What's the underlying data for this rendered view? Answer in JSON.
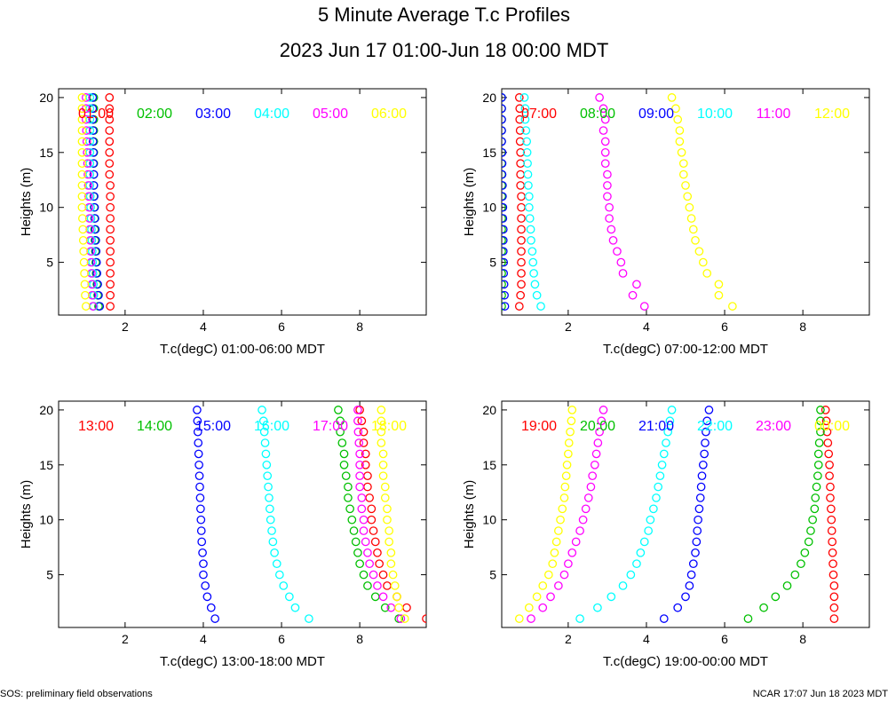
{
  "title": "5 Minute Average T.c Profiles",
  "subtitle": "2023 Jun 17 01:00-Jun 18 00:00 MDT",
  "footer_left": "SOS: preliminary field observations",
  "footer_right": "NCAR 17:07 Jun 18 2023 MDT",
  "colors": [
    "#ff0000",
    "#00c000",
    "#0000ff",
    "#00ffff",
    "#ff00ff",
    "#ffff00"
  ],
  "chart_data": [
    {
      "type": "scatter",
      "xlabel": "T.c(degC) 01:00-06:00 MDT",
      "ylabel": "Heights (m)",
      "xlim": [
        0.3,
        9.7
      ],
      "ylim": [
        0.2,
        20.8
      ],
      "xticks": [
        2,
        4,
        6,
        8
      ],
      "yticks": [
        5,
        10,
        15,
        20
      ],
      "heights": [
        1,
        2,
        3,
        4,
        5,
        6,
        7,
        8,
        9,
        10,
        11,
        12,
        13,
        14,
        15,
        16,
        17,
        18,
        19,
        20
      ],
      "series": [
        {
          "name": "01:00",
          "values": [
            1.62,
            1.62,
            1.62,
            1.62,
            1.62,
            1.62,
            1.62,
            1.62,
            1.62,
            1.62,
            1.62,
            1.62,
            1.6,
            1.6,
            1.6,
            1.6,
            1.6,
            1.6,
            1.6,
            1.6
          ]
        },
        {
          "name": "02:00",
          "values": [
            1.32,
            1.3,
            1.28,
            1.26,
            1.25,
            1.24,
            1.23,
            1.22,
            1.22,
            1.21,
            1.2,
            1.2,
            1.2,
            1.2,
            1.2,
            1.2,
            1.2,
            1.2,
            1.2,
            1.2
          ]
        },
        {
          "name": "03:00",
          "values": [
            1.35,
            1.32,
            1.3,
            1.28,
            1.27,
            1.26,
            1.25,
            1.24,
            1.23,
            1.22,
            1.21,
            1.2,
            1.2,
            1.19,
            1.19,
            1.18,
            1.18,
            1.17,
            1.17,
            1.17
          ]
        },
        {
          "name": "04:00",
          "values": [
            1.2,
            1.2,
            1.19,
            1.18,
            1.17,
            1.16,
            1.15,
            1.14,
            1.13,
            1.12,
            1.11,
            1.1,
            1.1,
            1.1,
            1.1,
            1.1,
            1.1,
            1.1,
            1.1,
            1.1
          ]
        },
        {
          "name": "05:00",
          "values": [
            1.18,
            1.16,
            1.15,
            1.14,
            1.13,
            1.12,
            1.11,
            1.1,
            1.09,
            1.08,
            1.07,
            1.06,
            1.05,
            1.04,
            1.03,
            1.02,
            1.01,
            1.0,
            1.0,
            1.0
          ]
        },
        {
          "name": "06:00",
          "values": [
            1.0,
            0.98,
            0.97,
            0.96,
            0.95,
            0.94,
            0.93,
            0.92,
            0.91,
            0.9,
            0.9,
            0.9,
            0.9,
            0.9,
            0.9,
            0.9,
            0.9,
            0.9,
            0.9,
            0.9
          ]
        }
      ]
    },
    {
      "type": "scatter",
      "xlabel": "T.c(degC) 07:00-12:00 MDT",
      "ylabel": "Heights (m)",
      "xlim": [
        0.3,
        9.7
      ],
      "ylim": [
        0.2,
        20.8
      ],
      "xticks": [
        2,
        4,
        6,
        8
      ],
      "yticks": [
        5,
        10,
        15,
        20
      ],
      "heights": [
        1,
        2,
        3,
        4,
        5,
        6,
        7,
        8,
        9,
        10,
        11,
        12,
        13,
        14,
        15,
        16,
        17,
        18,
        19,
        20
      ],
      "series": [
        {
          "name": "07:00",
          "values": [
            0.75,
            0.78,
            0.8,
            0.8,
            0.8,
            0.8,
            0.8,
            0.8,
            0.8,
            0.8,
            0.8,
            0.78,
            0.78,
            0.78,
            0.78,
            0.77,
            0.77,
            0.76,
            0.76,
            0.75
          ]
        },
        {
          "name": "08:00",
          "values": [
            0.3,
            0.3,
            0.3,
            0.3,
            0.3,
            0.3,
            0.3,
            0.3,
            0.3,
            0.3,
            0.3,
            0.3,
            0.3,
            0.3,
            0.3,
            0.3,
            0.3,
            0.3,
            0.3,
            0.3
          ]
        },
        {
          "name": "09:00",
          "values": [
            0.38,
            0.37,
            0.36,
            0.35,
            0.35,
            0.34,
            0.34,
            0.34,
            0.33,
            0.33,
            0.32,
            0.32,
            0.31,
            0.31,
            0.31,
            0.3,
            0.3,
            0.3,
            0.3,
            0.3
          ]
        },
        {
          "name": "10:00",
          "values": [
            1.3,
            1.2,
            1.15,
            1.12,
            1.1,
            1.08,
            1.05,
            1.04,
            1.02,
            1.0,
            1.0,
            0.98,
            0.97,
            0.96,
            0.95,
            0.94,
            0.92,
            0.9,
            0.9,
            0.88
          ]
        },
        {
          "name": "11:00",
          "values": [
            3.95,
            3.65,
            3.75,
            3.4,
            3.35,
            3.25,
            3.15,
            3.1,
            3.05,
            3.05,
            3.0,
            3.0,
            3.0,
            2.95,
            2.95,
            2.95,
            2.9,
            2.95,
            2.9,
            2.8
          ]
        },
        {
          "name": "12:00",
          "values": [
            6.2,
            5.85,
            5.85,
            5.55,
            5.45,
            5.35,
            5.25,
            5.2,
            5.15,
            5.1,
            5.05,
            5.0,
            4.95,
            4.95,
            4.9,
            4.85,
            4.85,
            4.8,
            4.75,
            4.65
          ]
        }
      ]
    },
    {
      "type": "scatter",
      "xlabel": "T.c(degC) 13:00-18:00 MDT",
      "ylabel": "Heights (m)",
      "xlim": [
        0.3,
        9.7
      ],
      "ylim": [
        0.2,
        20.8
      ],
      "xticks": [
        2,
        4,
        6,
        8
      ],
      "yticks": [
        5,
        10,
        15,
        20
      ],
      "heights": [
        1,
        2,
        3,
        4,
        5,
        6,
        7,
        8,
        9,
        10,
        11,
        12,
        13,
        14,
        15,
        16,
        17,
        18,
        19,
        20
      ],
      "series": [
        {
          "name": "13:00",
          "values": [
            9.7,
            9.2,
            8.95,
            8.7,
            8.6,
            8.5,
            8.45,
            8.4,
            8.35,
            8.3,
            8.3,
            8.25,
            8.2,
            8.2,
            8.15,
            8.15,
            8.1,
            8.1,
            8.05,
            8.0
          ]
        },
        {
          "name": "14:00",
          "values": [
            9.0,
            8.65,
            8.4,
            8.2,
            8.1,
            8.0,
            7.95,
            7.9,
            7.85,
            7.8,
            7.75,
            7.7,
            7.7,
            7.65,
            7.6,
            7.6,
            7.55,
            7.5,
            7.5,
            7.45
          ]
        },
        {
          "name": "15:00",
          "values": [
            4.3,
            4.2,
            4.1,
            4.05,
            4.0,
            4.0,
            3.98,
            3.96,
            3.95,
            3.94,
            3.93,
            3.92,
            3.91,
            3.9,
            3.89,
            3.88,
            3.87,
            3.86,
            3.85,
            3.84
          ]
        },
        {
          "name": "16:00",
          "values": [
            6.7,
            6.35,
            6.2,
            6.05,
            5.95,
            5.88,
            5.82,
            5.78,
            5.75,
            5.72,
            5.7,
            5.68,
            5.66,
            5.64,
            5.62,
            5.6,
            5.58,
            5.56,
            5.54,
            5.5
          ]
        },
        {
          "name": "17:00",
          "values": [
            9.05,
            8.8,
            8.6,
            8.45,
            8.35,
            8.25,
            8.2,
            8.15,
            8.1,
            8.1,
            8.05,
            8.05,
            8.0,
            8.0,
            8.0,
            8.0,
            7.98,
            7.96,
            7.95,
            7.95
          ]
        },
        {
          "name": "18:00",
          "values": [
            9.15,
            9.0,
            8.95,
            8.9,
            8.85,
            8.8,
            8.8,
            8.75,
            8.75,
            8.7,
            8.7,
            8.65,
            8.65,
            8.6,
            8.6,
            8.6,
            8.55,
            8.55,
            8.55,
            8.55
          ]
        }
      ]
    },
    {
      "type": "scatter",
      "xlabel": "T.c(degC) 19:00-00:00 MDT",
      "ylabel": "Heights (m)",
      "xlim": [
        0.3,
        9.7
      ],
      "ylim": [
        0.2,
        20.8
      ],
      "xticks": [
        2,
        4,
        6,
        8
      ],
      "yticks": [
        5,
        10,
        15,
        20
      ],
      "heights": [
        1,
        2,
        3,
        4,
        5,
        6,
        7,
        8,
        9,
        10,
        11,
        12,
        13,
        14,
        15,
        16,
        17,
        18,
        19,
        20
      ],
      "series": [
        {
          "name": "19:00",
          "values": [
            8.8,
            8.8,
            8.8,
            8.8,
            8.78,
            8.77,
            8.76,
            8.75,
            8.74,
            8.73,
            8.72,
            8.7,
            8.7,
            8.68,
            8.68,
            8.66,
            8.64,
            8.62,
            8.6,
            8.58
          ]
        },
        {
          "name": "20:00",
          "values": [
            6.6,
            7.0,
            7.3,
            7.6,
            7.8,
            7.95,
            8.05,
            8.15,
            8.2,
            8.25,
            8.3,
            8.32,
            8.35,
            8.38,
            8.4,
            8.4,
            8.42,
            8.45,
            8.45,
            8.45
          ]
        },
        {
          "name": "21:00",
          "values": [
            4.45,
            4.8,
            5.0,
            5.1,
            5.15,
            5.2,
            5.25,
            5.28,
            5.3,
            5.32,
            5.35,
            5.38,
            5.4,
            5.42,
            5.45,
            5.48,
            5.5,
            5.52,
            5.55,
            5.6
          ]
        },
        {
          "name": "22:00",
          "values": [
            2.3,
            2.75,
            3.1,
            3.4,
            3.6,
            3.75,
            3.85,
            3.95,
            4.05,
            4.1,
            4.18,
            4.25,
            4.3,
            4.35,
            4.4,
            4.45,
            4.5,
            4.55,
            4.6,
            4.65
          ]
        },
        {
          "name": "23:00",
          "values": [
            1.05,
            1.35,
            1.55,
            1.75,
            1.9,
            2.0,
            2.1,
            2.2,
            2.3,
            2.38,
            2.45,
            2.52,
            2.58,
            2.62,
            2.68,
            2.72,
            2.76,
            2.8,
            2.85,
            2.9
          ]
        },
        {
          "name": "00:00",
          "values": [
            0.75,
            1.0,
            1.2,
            1.35,
            1.5,
            1.6,
            1.65,
            1.7,
            1.75,
            1.8,
            1.85,
            1.9,
            1.92,
            1.95,
            1.97,
            2.0,
            2.02,
            2.05,
            2.08,
            2.1
          ]
        }
      ]
    }
  ]
}
